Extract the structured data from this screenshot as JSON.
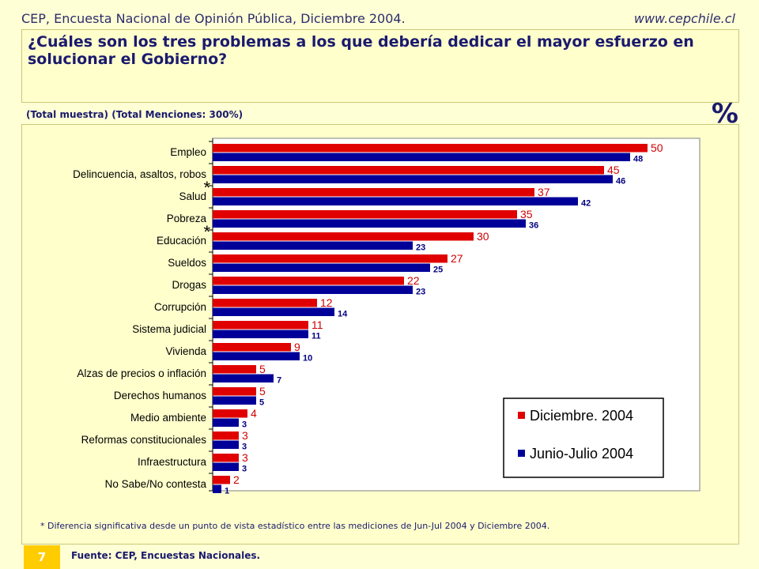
{
  "header": {
    "left": "CEP, Encuesta Nacional de Opinión Pública, Diciembre 2004.",
    "right": "www.cepchile.cl"
  },
  "question": "¿Cuáles son los tres problemas a los que debería dedicar el mayor esfuerzo en solucionar el Gobierno?",
  "subtitle": "(Total muestra) (Total Menciones: 300%)",
  "percent_symbol": "%",
  "footnote": "* Diferencia significativa desde un punto de vista estadístico entre las mediciones de Jun-Jul 2004 y Diciembre 2004.",
  "page_number": "7",
  "source": "Fuente: CEP, Encuestas Nacionales.",
  "chart_data": {
    "type": "bar",
    "orientation": "horizontal",
    "categories": [
      "Empleo",
      "Delincuencia, asaltos, robos",
      "Salud",
      "Pobreza",
      "Educación",
      "Sueldos",
      "Drogas",
      "Corrupción",
      "Sistema judicial",
      "Vivienda",
      "Alzas de precios o inflación",
      "Derechos humanos",
      "Medio ambiente",
      "Reformas constitucionales",
      "Infraestructura",
      "No Sabe/No contesta"
    ],
    "significant": [
      "Salud",
      "Educación"
    ],
    "significance_marker": "*",
    "series": [
      {
        "name": "Diciembre. 2004",
        "color": "#E00000",
        "label_color": "#D00000",
        "values": [
          50,
          45,
          37,
          35,
          30,
          27,
          22,
          12,
          11,
          9,
          5,
          5,
          4,
          3,
          3,
          2
        ]
      },
      {
        "name": "Junio-Julio 2004",
        "color": "#000099",
        "label_color": "#000080",
        "values": [
          48,
          46,
          42,
          36,
          23,
          25,
          23,
          14,
          11,
          10,
          7,
          5,
          3,
          3,
          3,
          1
        ]
      }
    ],
    "xlim": [
      0,
      56
    ],
    "legend_position": "bottom-right",
    "grid": false
  }
}
